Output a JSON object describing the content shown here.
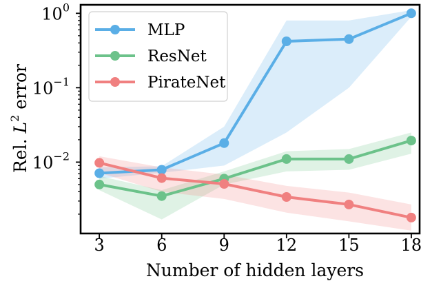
{
  "chart_data": {
    "type": "line",
    "xlabel": "Number of hidden layers",
    "ylabel": "Rel. L² error",
    "ylabel_parts": [
      "Rel. ",
      "L",
      "2",
      " error"
    ],
    "yscale": "log",
    "ylim": [
      0.0011,
      1.3
    ],
    "xlim": [
      2.1,
      18.4
    ],
    "x": [
      3,
      6,
      9,
      12,
      15,
      18
    ],
    "x_tick_labels": [
      "3",
      "6",
      "9",
      "12",
      "15",
      "18"
    ],
    "y_ticks": [
      {
        "value": 0.01,
        "base": "10",
        "exp": "−2"
      },
      {
        "value": 0.1,
        "base": "10",
        "exp": "−1"
      },
      {
        "value": 1,
        "base": "10",
        "exp": "0"
      }
    ],
    "legend_position": "upper left",
    "series": [
      {
        "name": "MLP",
        "color": "#5aaee6",
        "values": [
          0.0071,
          0.0079,
          0.018,
          0.42,
          0.45,
          1.0
        ],
        "band_lower": [
          0.006,
          0.0072,
          0.009,
          0.025,
          0.1,
          0.9
        ],
        "band_upper": [
          0.0085,
          0.0088,
          0.03,
          0.8,
          0.8,
          1.1
        ]
      },
      {
        "name": "ResNet",
        "color": "#6cc28a",
        "values": [
          0.005,
          0.0035,
          0.006,
          0.011,
          0.011,
          0.0195
        ],
        "band_lower": [
          0.0042,
          0.0017,
          0.005,
          0.0075,
          0.0079,
          0.013
        ],
        "band_upper": [
          0.0065,
          0.0042,
          0.0075,
          0.014,
          0.015,
          0.025
        ]
      },
      {
        "name": "PirateNet",
        "color": "#f08080",
        "values": [
          0.0098,
          0.0061,
          0.0051,
          0.0034,
          0.0027,
          0.0018
        ],
        "band_lower": [
          0.0072,
          0.004,
          0.0032,
          0.0021,
          0.0016,
          0.0012
        ],
        "band_upper": [
          0.012,
          0.0085,
          0.0068,
          0.0048,
          0.0039,
          0.0027
        ]
      }
    ]
  }
}
